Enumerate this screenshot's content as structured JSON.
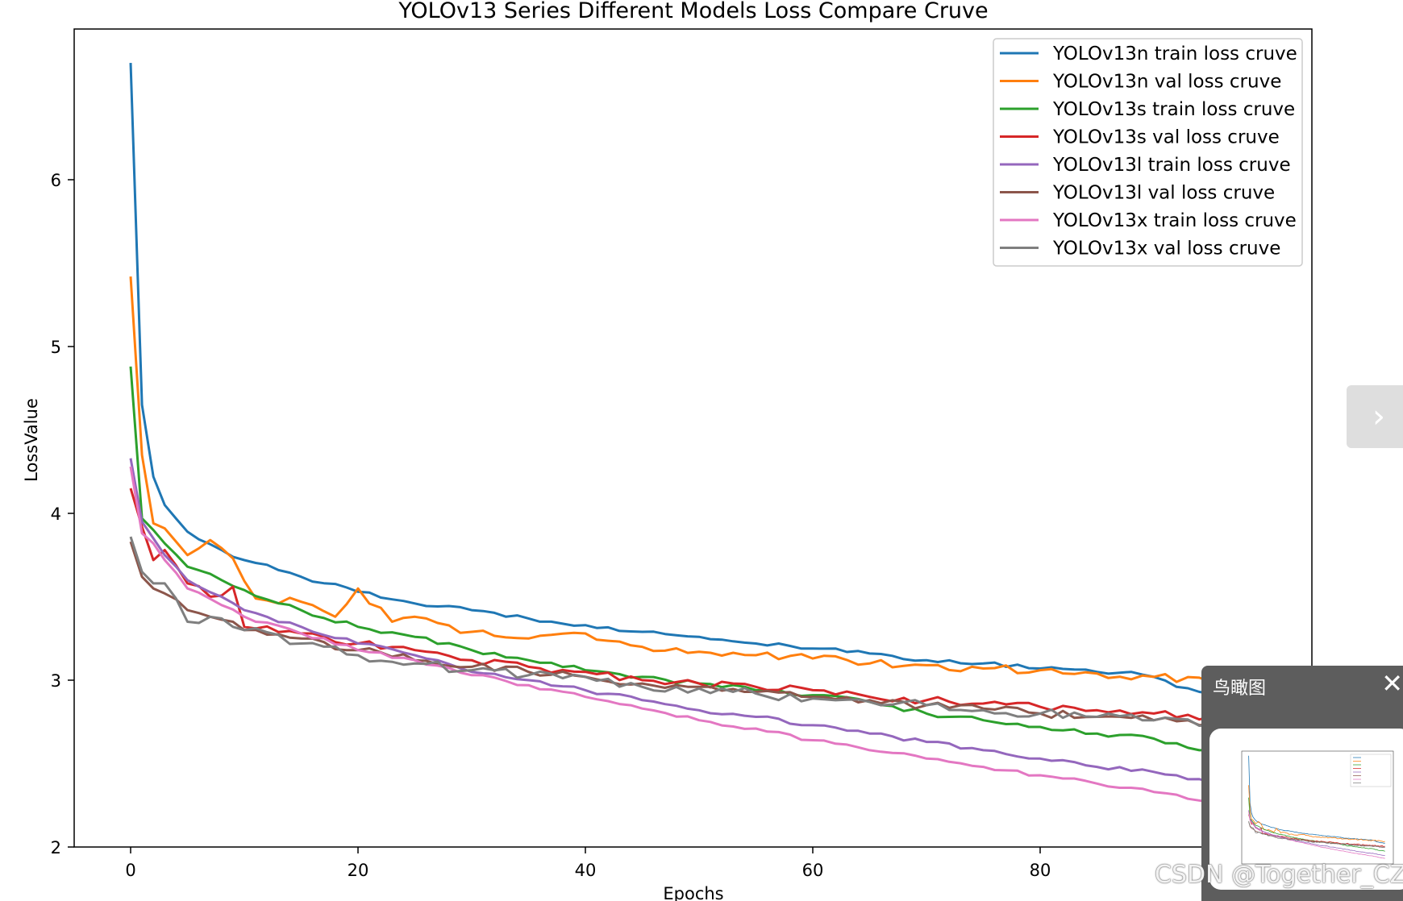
{
  "chart_data": {
    "type": "line",
    "title": "YOLOv13 Series Different Models Loss Compare Cruve",
    "xlabel": "Epochs",
    "ylabel": "LossValue",
    "xlim": [
      -5,
      104
    ],
    "ylim": [
      2.0,
      6.9
    ],
    "xticks": [
      0,
      20,
      40,
      60,
      80
    ],
    "yticks": [
      2,
      3,
      4,
      5,
      6
    ],
    "legend_position": "top-right",
    "series": [
      {
        "name": "YOLOv13n train loss cruve",
        "color": "#1f77b4",
        "keypoints": [
          [
            0,
            6.7
          ],
          [
            1,
            4.65
          ],
          [
            2,
            4.22
          ],
          [
            3,
            4.05
          ],
          [
            5,
            3.89
          ],
          [
            8,
            3.78
          ],
          [
            10,
            3.72
          ],
          [
            15,
            3.62
          ],
          [
            20,
            3.53
          ],
          [
            25,
            3.46
          ],
          [
            30,
            3.42
          ],
          [
            35,
            3.37
          ],
          [
            40,
            3.33
          ],
          [
            45,
            3.29
          ],
          [
            50,
            3.26
          ],
          [
            55,
            3.22
          ],
          [
            60,
            3.19
          ],
          [
            65,
            3.16
          ],
          [
            70,
            3.12
          ],
          [
            75,
            3.1
          ],
          [
            80,
            3.07
          ],
          [
            85,
            3.05
          ],
          [
            88,
            3.05
          ],
          [
            90,
            3.02
          ],
          [
            92,
            2.96
          ],
          [
            95,
            2.92
          ],
          [
            98,
            2.9
          ]
        ],
        "noise": 0.012
      },
      {
        "name": "YOLOv13n val loss cruve",
        "color": "#ff7f0e",
        "keypoints": [
          [
            0,
            5.42
          ],
          [
            1,
            4.35
          ],
          [
            2,
            3.94
          ],
          [
            3,
            3.91
          ],
          [
            5,
            3.75
          ],
          [
            7,
            3.84
          ],
          [
            9,
            3.73
          ],
          [
            11,
            3.49
          ],
          [
            15,
            3.47
          ],
          [
            18,
            3.38
          ],
          [
            20,
            3.55
          ],
          [
            23,
            3.35
          ],
          [
            25,
            3.38
          ],
          [
            30,
            3.29
          ],
          [
            35,
            3.25
          ],
          [
            40,
            3.28
          ],
          [
            45,
            3.2
          ],
          [
            50,
            3.17
          ],
          [
            55,
            3.15
          ],
          [
            60,
            3.13
          ],
          [
            65,
            3.1
          ],
          [
            70,
            3.09
          ],
          [
            75,
            3.07
          ],
          [
            80,
            3.06
          ],
          [
            85,
            3.04
          ],
          [
            90,
            3.02
          ],
          [
            95,
            2.99
          ],
          [
            98,
            2.98
          ]
        ],
        "noise": 0.025
      },
      {
        "name": "YOLOv13s train loss cruve",
        "color": "#2ca02c",
        "keypoints": [
          [
            0,
            4.88
          ],
          [
            1,
            3.97
          ],
          [
            2,
            3.9
          ],
          [
            3,
            3.82
          ],
          [
            5,
            3.68
          ],
          [
            8,
            3.6
          ],
          [
            10,
            3.54
          ],
          [
            15,
            3.42
          ],
          [
            20,
            3.32
          ],
          [
            25,
            3.26
          ],
          [
            30,
            3.18
          ],
          [
            35,
            3.12
          ],
          [
            40,
            3.06
          ],
          [
            45,
            3.02
          ],
          [
            50,
            2.98
          ],
          [
            55,
            2.94
          ],
          [
            60,
            2.91
          ],
          [
            65,
            2.87
          ],
          [
            70,
            2.8
          ],
          [
            75,
            2.76
          ],
          [
            80,
            2.72
          ],
          [
            85,
            2.68
          ],
          [
            90,
            2.65
          ],
          [
            95,
            2.58
          ],
          [
            98,
            2.55
          ]
        ],
        "noise": 0.015
      },
      {
        "name": "YOLOv13s val loss cruve",
        "color": "#d62728",
        "keypoints": [
          [
            0,
            4.15
          ],
          [
            1,
            3.92
          ],
          [
            2,
            3.72
          ],
          [
            3,
            3.78
          ],
          [
            5,
            3.58
          ],
          [
            7,
            3.5
          ],
          [
            9,
            3.56
          ],
          [
            10,
            3.32
          ],
          [
            15,
            3.28
          ],
          [
            20,
            3.22
          ],
          [
            25,
            3.18
          ],
          [
            30,
            3.12
          ],
          [
            35,
            3.08
          ],
          [
            40,
            3.05
          ],
          [
            45,
            3.0
          ],
          [
            50,
            2.98
          ],
          [
            55,
            2.96
          ],
          [
            60,
            2.94
          ],
          [
            65,
            2.9
          ],
          [
            70,
            2.88
          ],
          [
            75,
            2.86
          ],
          [
            80,
            2.84
          ],
          [
            85,
            2.82
          ],
          [
            90,
            2.8
          ],
          [
            95,
            2.78
          ],
          [
            98,
            2.77
          ]
        ],
        "noise": 0.025
      },
      {
        "name": "YOLOv13l train loss cruve",
        "color": "#9467bd",
        "keypoints": [
          [
            0,
            4.33
          ],
          [
            1,
            3.95
          ],
          [
            2,
            3.85
          ],
          [
            3,
            3.75
          ],
          [
            5,
            3.6
          ],
          [
            8,
            3.5
          ],
          [
            10,
            3.42
          ],
          [
            15,
            3.32
          ],
          [
            20,
            3.22
          ],
          [
            25,
            3.15
          ],
          [
            30,
            3.05
          ],
          [
            35,
            3.0
          ],
          [
            40,
            2.94
          ],
          [
            45,
            2.88
          ],
          [
            50,
            2.82
          ],
          [
            55,
            2.78
          ],
          [
            60,
            2.73
          ],
          [
            65,
            2.68
          ],
          [
            70,
            2.63
          ],
          [
            75,
            2.58
          ],
          [
            80,
            2.53
          ],
          [
            85,
            2.48
          ],
          [
            90,
            2.45
          ],
          [
            95,
            2.39
          ],
          [
            98,
            2.37
          ]
        ],
        "noise": 0.012
      },
      {
        "name": "YOLOv13l val loss cruve",
        "color": "#8c564b",
        "keypoints": [
          [
            0,
            3.83
          ],
          [
            1,
            3.62
          ],
          [
            2,
            3.55
          ],
          [
            3,
            3.52
          ],
          [
            5,
            3.42
          ],
          [
            7,
            3.38
          ],
          [
            9,
            3.35
          ],
          [
            10,
            3.3
          ],
          [
            15,
            3.25
          ],
          [
            20,
            3.18
          ],
          [
            25,
            3.12
          ],
          [
            30,
            3.08
          ],
          [
            35,
            3.05
          ],
          [
            40,
            3.02
          ],
          [
            45,
            2.98
          ],
          [
            50,
            2.96
          ],
          [
            55,
            2.93
          ],
          [
            60,
            2.9
          ],
          [
            65,
            2.88
          ],
          [
            70,
            2.85
          ],
          [
            75,
            2.83
          ],
          [
            80,
            2.8
          ],
          [
            85,
            2.78
          ],
          [
            90,
            2.76
          ],
          [
            95,
            2.74
          ],
          [
            98,
            2.73
          ]
        ],
        "noise": 0.025
      },
      {
        "name": "YOLOv13x train loss cruve",
        "color": "#e377c2",
        "keypoints": [
          [
            0,
            4.28
          ],
          [
            1,
            3.88
          ],
          [
            2,
            3.82
          ],
          [
            3,
            3.72
          ],
          [
            5,
            3.55
          ],
          [
            8,
            3.45
          ],
          [
            10,
            3.38
          ],
          [
            15,
            3.28
          ],
          [
            20,
            3.18
          ],
          [
            25,
            3.12
          ],
          [
            30,
            3.03
          ],
          [
            35,
            2.97
          ],
          [
            40,
            2.9
          ],
          [
            45,
            2.83
          ],
          [
            50,
            2.76
          ],
          [
            55,
            2.71
          ],
          [
            60,
            2.64
          ],
          [
            65,
            2.58
          ],
          [
            70,
            2.53
          ],
          [
            75,
            2.48
          ],
          [
            80,
            2.43
          ],
          [
            85,
            2.38
          ],
          [
            90,
            2.33
          ],
          [
            95,
            2.27
          ],
          [
            98,
            2.24
          ]
        ],
        "noise": 0.012
      },
      {
        "name": "YOLOv13x val loss cruve",
        "color": "#7f7f7f",
        "keypoints": [
          [
            0,
            3.86
          ],
          [
            1,
            3.65
          ],
          [
            2,
            3.58
          ],
          [
            3,
            3.58
          ],
          [
            5,
            3.35
          ],
          [
            7,
            3.38
          ],
          [
            9,
            3.32
          ],
          [
            10,
            3.3
          ],
          [
            15,
            3.22
          ],
          [
            20,
            3.15
          ],
          [
            25,
            3.1
          ],
          [
            30,
            3.06
          ],
          [
            35,
            3.03
          ],
          [
            40,
            3.02
          ],
          [
            45,
            2.96
          ],
          [
            50,
            2.95
          ],
          [
            55,
            2.92
          ],
          [
            60,
            2.89
          ],
          [
            65,
            2.87
          ],
          [
            70,
            2.85
          ],
          [
            75,
            2.82
          ],
          [
            80,
            2.8
          ],
          [
            85,
            2.78
          ],
          [
            90,
            2.76
          ],
          [
            95,
            2.73
          ],
          [
            98,
            2.72
          ]
        ],
        "noise": 0.028
      }
    ]
  },
  "ui": {
    "next_arrow": "›",
    "birdseye_title": "鸟瞰图",
    "birdseye_close": "✕",
    "watermark": "CSDN @Together_CZ"
  }
}
